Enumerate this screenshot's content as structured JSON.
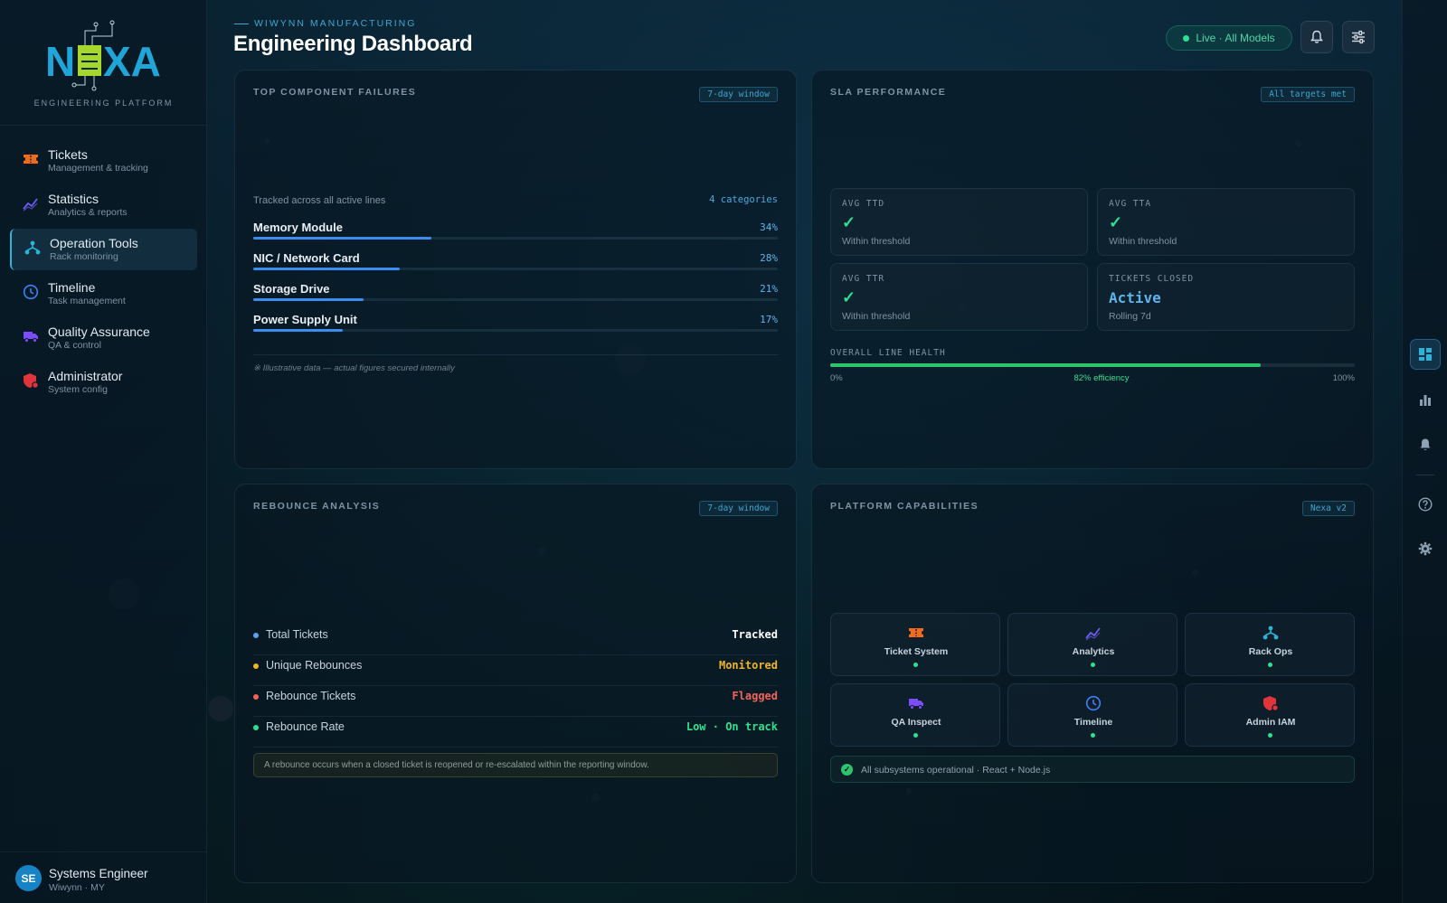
{
  "brand": {
    "logo_text": "NEXA",
    "subtitle": "ENGINEERING PLATFORM"
  },
  "sidebar": {
    "items": [
      {
        "label": "Tickets",
        "sub": "Management & tracking",
        "icon": "ticket-icon"
      },
      {
        "label": "Statistics",
        "sub": "Analytics & reports",
        "icon": "chart-line-icon"
      },
      {
        "label": "Operation Tools",
        "sub": "Rack monitoring",
        "icon": "network-icon"
      },
      {
        "label": "Timeline",
        "sub": "Task management",
        "icon": "clock-icon"
      },
      {
        "label": "Quality Assurance",
        "sub": "QA & control",
        "icon": "truck-icon"
      },
      {
        "label": "Administrator",
        "sub": "System config",
        "icon": "shield-icon"
      }
    ],
    "active_index": 2
  },
  "user": {
    "initials": "SE",
    "name": "Systems Engineer",
    "sub": "Wiwynn · MY"
  },
  "header": {
    "eyebrow": "WIWYNN MANUFACTURING",
    "title": "Engineering Dashboard",
    "live_label": "Live · All Models"
  },
  "failures": {
    "title": "TOP COMPONENT FAILURES",
    "tag": "7-day window",
    "caption": "Tracked across all active lines",
    "count_label": "4 categories",
    "items": [
      {
        "name": "Memory Module",
        "pct_label": "34%",
        "pct": 34
      },
      {
        "name": "NIC / Network Card",
        "pct_label": "28%",
        "pct": 28
      },
      {
        "name": "Storage Drive",
        "pct_label": "21%",
        "pct": 21
      },
      {
        "name": "Power Supply Unit",
        "pct_label": "17%",
        "pct": 17
      }
    ],
    "footnote": "※ Illustrative data — actual figures secured internally"
  },
  "sla": {
    "title": "SLA PERFORMANCE",
    "tag": "All targets met",
    "cards": [
      {
        "label": "AVG TTD",
        "check": "✓",
        "sub": "Within threshold"
      },
      {
        "label": "AVG TTA",
        "check": "✓",
        "sub": "Within threshold"
      },
      {
        "label": "AVG TTR",
        "check": "✓",
        "sub": "Within threshold"
      },
      {
        "label": "TICKETS CLOSED",
        "value": "Active",
        "sub": "Rolling 7d"
      }
    ],
    "health": {
      "label": "OVERALL LINE HEALTH",
      "min_label": "0%",
      "max_label": "100%",
      "center_label": "82% efficiency",
      "value": 82
    }
  },
  "rebounce": {
    "title": "REBOUNCE ANALYSIS",
    "tag": "7-day window",
    "rows": [
      {
        "label": "Total Tickets",
        "value": "Tracked",
        "color": "#5fa0f5"
      },
      {
        "label": "Unique Rebounces",
        "value": "Monitored",
        "color": "#f0b429"
      },
      {
        "label": "Rebounce Tickets",
        "value": "Flagged",
        "color": "#f0645a"
      },
      {
        "label": "Rebounce Rate",
        "value": "Low · On track",
        "color": "#2ee08f"
      }
    ],
    "note": "A rebounce occurs when a closed ticket is reopened or re-escalated within the reporting window."
  },
  "capabilities": {
    "title": "PLATFORM CAPABILITIES",
    "tag": "Nexa v2",
    "items": [
      {
        "label": "Ticket System",
        "icon": "ticket-icon"
      },
      {
        "label": "Analytics",
        "icon": "chart-line-icon"
      },
      {
        "label": "Rack Ops",
        "icon": "network-icon"
      },
      {
        "label": "QA Inspect",
        "icon": "truck-icon"
      },
      {
        "label": "Timeline",
        "icon": "clock-icon"
      },
      {
        "label": "Admin IAM",
        "icon": "shield-icon"
      }
    ],
    "status": "All subsystems operational · React + Node.js"
  },
  "colors": {
    "accent": "#3fa6d0",
    "ticket_icon": "#f26b1d",
    "analytics_icon": "#6d5cf0",
    "rack_icon": "#2bb3d9",
    "timeline_icon": "#3b82f6",
    "qa_icon": "#7c4dff",
    "admin_icon": "#e0353b",
    "health_green": "#2cc46d"
  }
}
